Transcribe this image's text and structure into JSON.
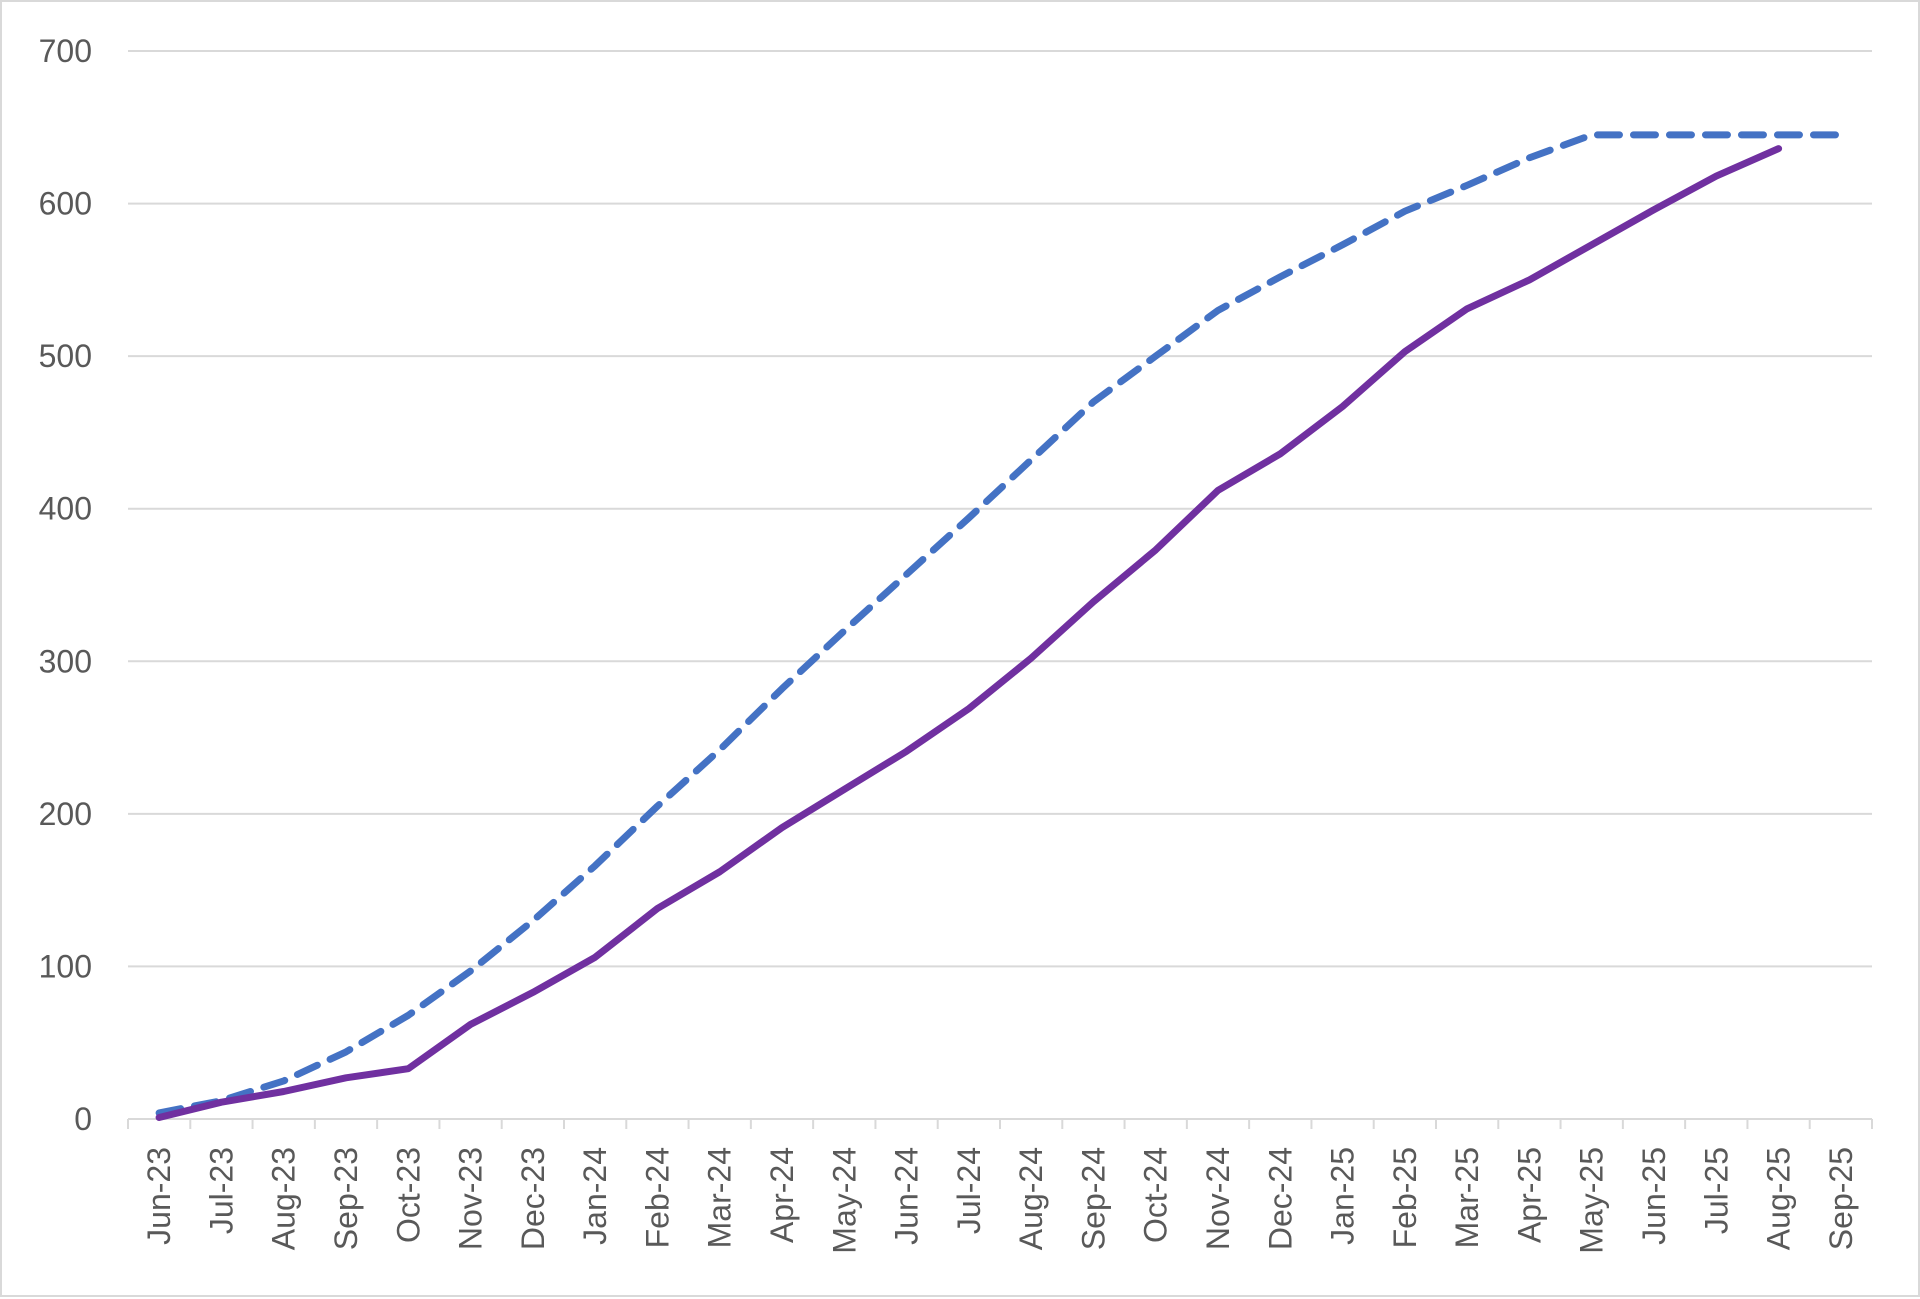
{
  "chart_data": {
    "type": "line",
    "title": "",
    "xlabel": "",
    "ylabel": "",
    "categories": [
      "Jun-23",
      "Jul-23",
      "Aug-23",
      "Sep-23",
      "Oct-23",
      "Nov-23",
      "Dec-23",
      "Jan-24",
      "Feb-24",
      "Mar-24",
      "Apr-24",
      "May-24",
      "Jun-24",
      "Jul-24",
      "Aug-24",
      "Sep-24",
      "Oct-24",
      "Nov-24",
      "Dec-24",
      "Jan-25",
      "Feb-25",
      "Mar-25",
      "Apr-25",
      "May-25",
      "Jun-25",
      "Jul-25",
      "Aug-25",
      "Sep-25"
    ],
    "yticks": [
      0,
      100,
      200,
      300,
      400,
      500,
      600,
      700
    ],
    "ylim": [
      0,
      700
    ],
    "grid": "horizontal",
    "legend": "none",
    "series": [
      {
        "style": "dashed",
        "color": "#4472c4",
        "values": [
          4,
          12,
          25,
          44,
          68,
          97,
          130,
          166,
          205,
          242,
          282,
          320,
          357,
          394,
          432,
          470,
          500,
          530,
          552,
          573,
          595,
          612,
          630,
          645,
          645,
          645,
          645,
          645
        ]
      },
      {
        "style": "solid",
        "color": "#7030a0",
        "values": [
          1,
          11,
          18,
          27,
          33,
          62,
          83,
          106,
          138,
          162,
          191,
          216,
          241,
          269,
          302,
          339,
          373,
          412,
          436,
          467,
          503,
          531,
          550,
          573,
          596,
          618,
          636,
          null
        ]
      }
    ]
  }
}
